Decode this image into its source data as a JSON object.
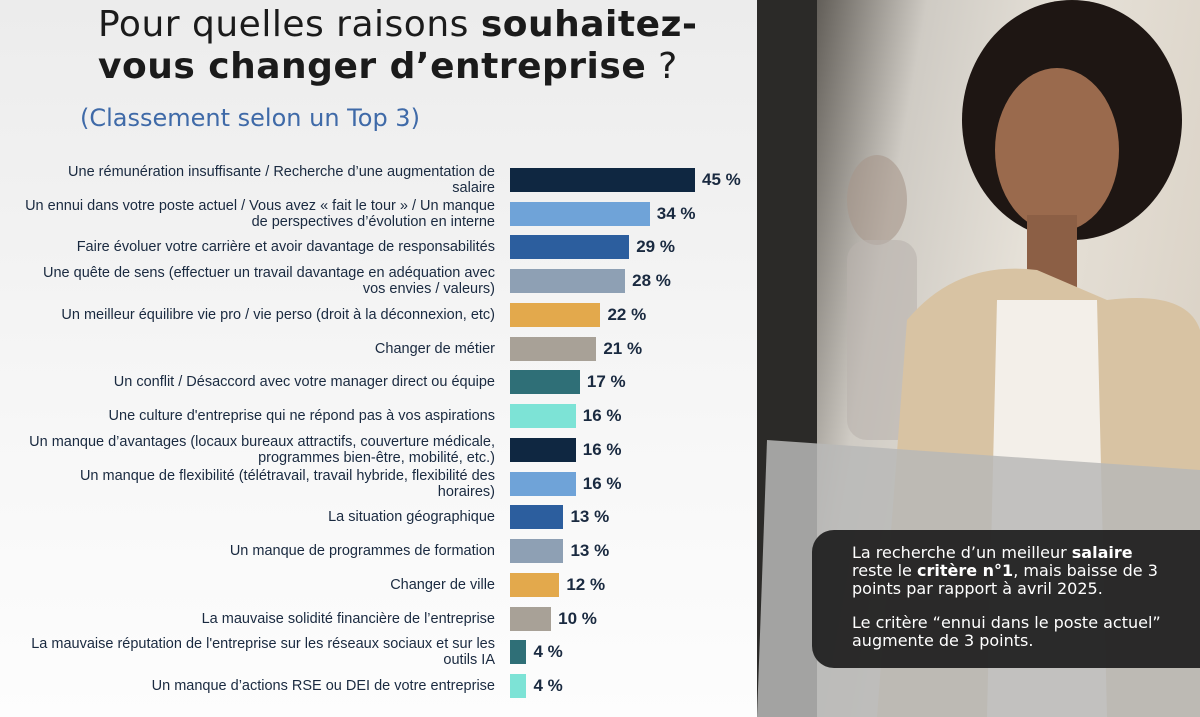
{
  "chart_data": {
    "type": "bar",
    "orientation": "horizontal",
    "title_parts": [
      "Pour quelles raisons ",
      "souhaitez-",
      "vous changer d’entreprise",
      " ?"
    ],
    "subtitle": "(Classement selon un Top 3)",
    "categories": [
      "Une rémunération insuffisante / Recherche d’une augmentation de salaire",
      "Un ennui dans votre poste actuel / Vous avez « fait le tour » / Un manque de perspectives d’évolution en interne",
      "Faire évoluer votre carrière et avoir davantage de responsabilités",
      "Une quête de sens (effectuer un travail davantage en adéquation avec vos envies / valeurs)",
      "Un meilleur équilibre vie pro / vie perso (droit à la déconnexion, etc)",
      "Changer de métier",
      "Un conflit / Désaccord avec votre manager direct ou équipe",
      "Une culture d'entreprise qui ne répond pas à vos aspirations",
      "Un manque d’avantages (locaux bureaux attractifs, couverture médicale, programmes bien-être, mobilité, etc.)",
      "Un manque de flexibilité (télétravail, travail hybride, flexibilité des horaires)",
      "La situation géographique",
      "Un manque de programmes de formation",
      "Changer de ville",
      "La mauvaise solidité financière de l’entreprise",
      "La mauvaise réputation de l'entreprise sur les réseaux sociaux et sur les outils IA",
      "Un manque d’actions RSE ou DEI de votre entreprise"
    ],
    "values": [
      45,
      34,
      29,
      28,
      22,
      21,
      17,
      16,
      16,
      16,
      13,
      13,
      12,
      10,
      4,
      4
    ],
    "value_labels": [
      "45 %",
      "34 %",
      "29 %",
      "28 %",
      "22 %",
      "21 %",
      "17 %",
      "16 %",
      "16 %",
      "16 %",
      "13 %",
      "13 %",
      "12 %",
      "10 %",
      "4 %",
      "4 %"
    ],
    "colors": [
      "#0f2741",
      "#6fa3d8",
      "#2c5e9e",
      "#8ea0b4",
      "#e3a94c",
      "#a8a197",
      "#2f6f77",
      "#7de3d6",
      "#0f2741",
      "#6fa3d8",
      "#2c5e9e",
      "#8ea0b4",
      "#e3a94c",
      "#a8a197",
      "#2f6f77",
      "#7de3d6"
    ],
    "xlim": [
      0,
      45
    ],
    "annotations": [
      [
        {
          "text": "La recherche d’un meilleur ",
          "bold": false
        },
        {
          "text": "salaire",
          "bold": true
        },
        {
          "text": " reste le ",
          "bold": false
        },
        {
          "text": "critère n°1",
          "bold": true
        },
        {
          "text": ", mais baisse de 3 points par rapport à avril 2025.",
          "bold": false
        }
      ],
      [
        {
          "text": "Le critère “ennui dans le poste actuel” augmente de 3 points.",
          "bold": false
        }
      ]
    ]
  }
}
